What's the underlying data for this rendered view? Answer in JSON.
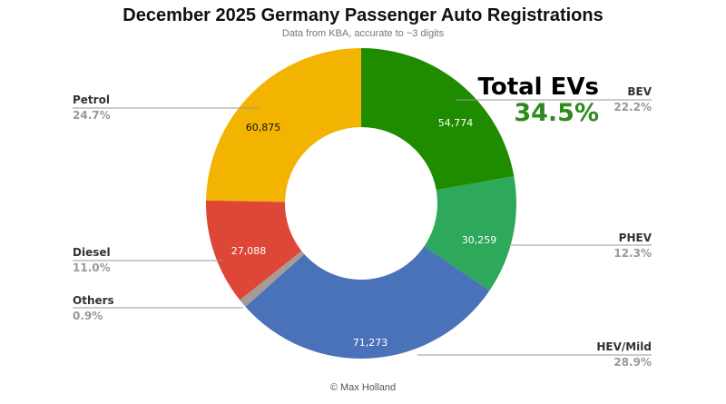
{
  "chart_data": {
    "type": "pie",
    "donut": true,
    "title": "December 2025 Germany Passenger Auto Registrations",
    "subtitle": "Data from KBA, accurate to ~3 digits",
    "credit": "© Max Holland",
    "slices": [
      {
        "name": "BEV",
        "value": 54774,
        "value_label": "54,774",
        "percent": "22.2%",
        "color": "#1f8c00"
      },
      {
        "name": "PHEV",
        "value": 30259,
        "value_label": "30,259",
        "percent": "12.3%",
        "color": "#2ea85a"
      },
      {
        "name": "HEV/Mild",
        "value": 71273,
        "value_label": "71,273",
        "percent": "28.9%",
        "color": "#4a72b8"
      },
      {
        "name": "Others",
        "value": null,
        "value_label": "",
        "percent": "0.9%",
        "color": "#a89a94"
      },
      {
        "name": "Diesel",
        "value": 27088,
        "value_label": "27,088",
        "percent": "11.0%",
        "color": "#de4638"
      },
      {
        "name": "Petrol",
        "value": 60875,
        "value_label": "60,875",
        "percent": "24.7%",
        "color": "#f2b400"
      }
    ],
    "annotation": {
      "label": "Total EVs",
      "value": "34.5%",
      "color": "#2e8b1e"
    }
  }
}
